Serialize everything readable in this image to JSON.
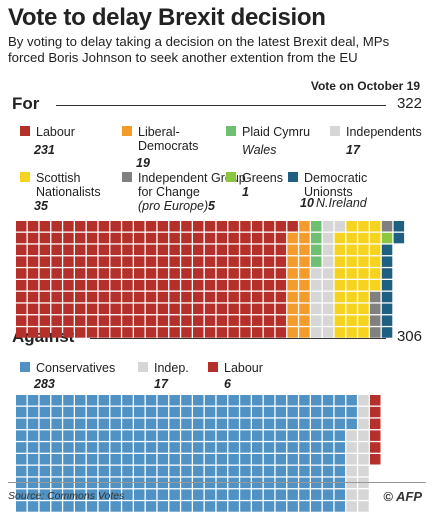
{
  "title": "Vote to delay Brexit decision",
  "subtitle": "By voting to delay taking a decision on the latest Brexit deal, MPs forced Boris Johnson to seek another extention from the EU",
  "vote_date": "Vote on October 19",
  "source": "Source: Commons Votes",
  "credit": "© AFP",
  "chart_data": {
    "type": "waffle",
    "sections": [
      {
        "label": "For",
        "total": 322,
        "parties": [
          {
            "name": "Labour",
            "count": 231,
            "color": "#b5302a"
          },
          {
            "name": "Liberal-Democrats",
            "count": 19,
            "color": "#f39b2b"
          },
          {
            "name": "Plaid Cymru",
            "count": 4,
            "note": "Wales",
            "color": "#6fbf73"
          },
          {
            "name": "Independents",
            "count": 17,
            "color": "#d6d6d6"
          },
          {
            "name": "Scottish Nationalists",
            "count": 35,
            "color": "#f5d31f"
          },
          {
            "name": "Independent Group for Change",
            "count": 5,
            "note": "(pro Europe)",
            "color": "#808080"
          },
          {
            "name": "Greens",
            "count": 1,
            "color": "#8cc63f"
          },
          {
            "name": "Democratic Unionsts",
            "count": 10,
            "note": "N.Ireland",
            "color": "#1f5f82"
          }
        ]
      },
      {
        "label": "Against",
        "total": 306,
        "parties": [
          {
            "name": "Conservatives",
            "count": 283,
            "color": "#4f92c3"
          },
          {
            "name": "Indep.",
            "count": 17,
            "color": "#d6d6d6"
          },
          {
            "name": "Labour",
            "count": 6,
            "color": "#b5302a"
          }
        ]
      }
    ]
  }
}
